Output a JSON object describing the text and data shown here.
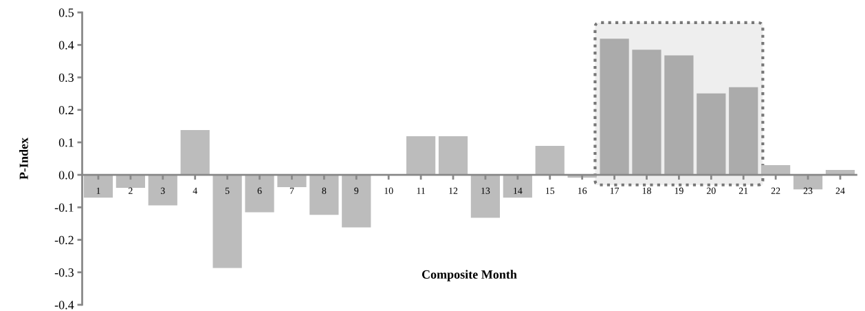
{
  "chart_data": {
    "type": "bar",
    "xlabel": "Composite Month",
    "ylabel": "P-Index",
    "categories": [
      "1",
      "2",
      "3",
      "4",
      "5",
      "6",
      "7",
      "8",
      "9",
      "10",
      "11",
      "12",
      "13",
      "14",
      "15",
      "16",
      "17",
      "18",
      "19",
      "20",
      "21",
      "22",
      "23",
      "24"
    ],
    "values": [
      -0.07,
      -0.04,
      -0.094,
      0.138,
      -0.287,
      -0.115,
      -0.038,
      -0.123,
      -0.162,
      0,
      0.119,
      0.119,
      -0.132,
      -0.07,
      0.089,
      -0.009,
      0.419,
      0.385,
      0.368,
      0.251,
      0.27,
      0.03,
      -0.045,
      0.015
    ],
    "colors": [
      "#bcbcbc",
      "#bcbcbc",
      "#bcbcbc",
      "#bcbcbc",
      "#bcbcbc",
      "#bcbcbc",
      "#bcbcbc",
      "#bcbcbc",
      "#bcbcbc",
      "#bcbcbc",
      "#bcbcbc",
      "#bcbcbc",
      "#bcbcbc",
      "#bcbcbc",
      "#bcbcbc",
      "#bcbcbc",
      "#ababab",
      "#ababab",
      "#ababab",
      "#ababab",
      "#ababab",
      "#bcbcbc",
      "#bcbcbc",
      "#bcbcbc"
    ],
    "ylim": [
      -0.4,
      0.5
    ],
    "yticks": [
      {
        "value": -0.4,
        "label": "-0.4"
      },
      {
        "value": -0.3,
        "label": "-0.3"
      },
      {
        "value": -0.2,
        "label": "-0.2"
      },
      {
        "value": -0.1,
        "label": "-0.1"
      },
      {
        "value": 0,
        "label": "0.0"
      },
      {
        "value": 0.1,
        "label": "0.1"
      },
      {
        "value": 0.2,
        "label": "0.2"
      },
      {
        "value": 0.3,
        "label": "0.3"
      },
      {
        "value": 0.4,
        "label": "0.4"
      },
      {
        "value": 0.5,
        "label": "0.5"
      }
    ],
    "bands": [
      {
        "axis": "x",
        "from": "17",
        "to": "21",
        "color": "#eeeeee"
      }
    ],
    "grid": false,
    "legend": false
  }
}
